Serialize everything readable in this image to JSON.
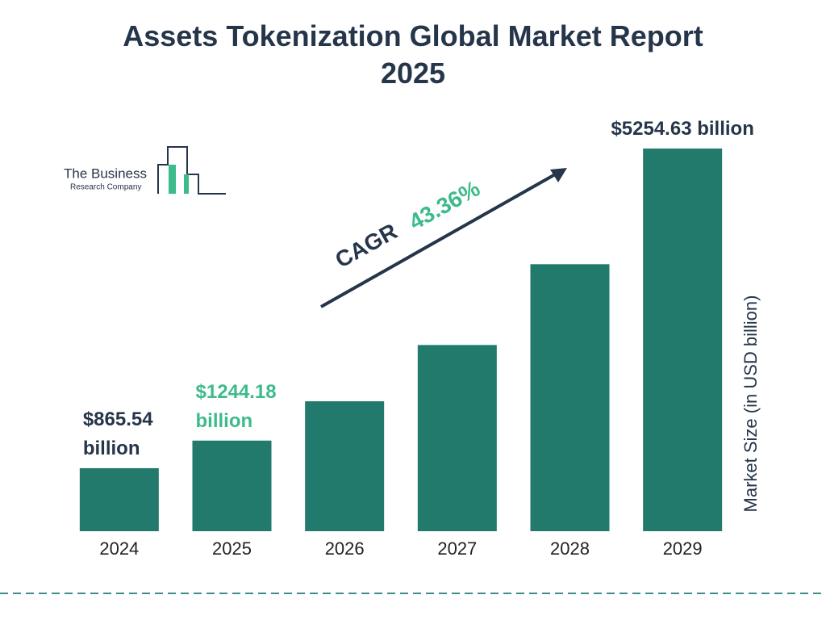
{
  "chart_data": {
    "type": "bar",
    "title": "Assets Tokenization Global Market Report 2025",
    "categories": [
      "2024",
      "2025",
      "2026",
      "2027",
      "2028",
      "2029"
    ],
    "values": [
      865.54,
      1244.18,
      1784,
      2557,
      3666,
      5254.63
    ],
    "value_labels": [
      "$865.54 billion",
      "$1244.18 billion",
      null,
      null,
      null,
      "$5254.63 billion"
    ],
    "value_label_colors": [
      "#25354a",
      "#3dbb8a",
      null,
      null,
      null,
      "#25354a"
    ],
    "color": "#217a6b",
    "y_axis_label": "Market Size (in USD billion)",
    "cagr_label": "CAGR",
    "cagr_value": "43.36%",
    "logo": {
      "line1": "The Business",
      "line2": "Research Company"
    }
  }
}
